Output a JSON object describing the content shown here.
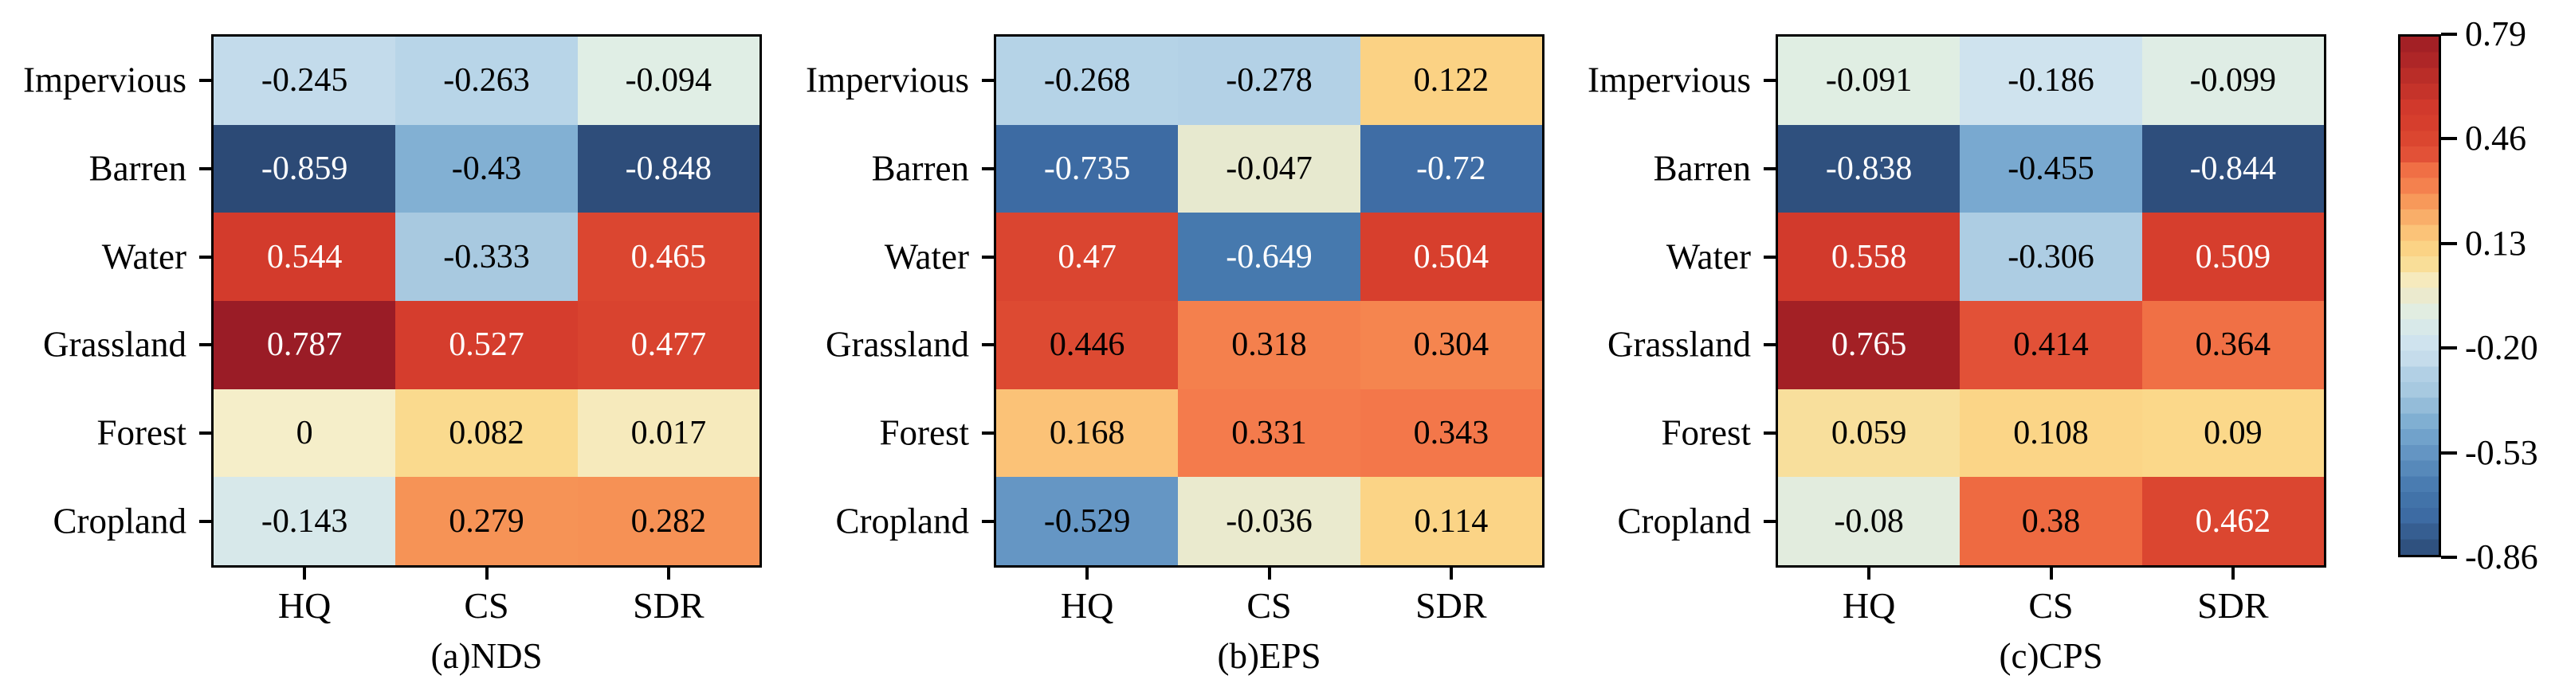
{
  "figure": {
    "kind": "correlation-heatmaps",
    "background": "#ffffff"
  },
  "chart_data": [
    {
      "type": "heatmap",
      "title": "(a)NDS",
      "rows": [
        "Impervious",
        "Barren",
        "Water",
        "Grassland",
        "Forest",
        "Cropland"
      ],
      "cols": [
        "HQ",
        "CS",
        "SDR"
      ],
      "values": [
        [
          -0.245,
          -0.263,
          -0.094
        ],
        [
          -0.859,
          -0.43,
          -0.848
        ],
        [
          0.544,
          -0.333,
          0.465
        ],
        [
          0.787,
          0.527,
          0.477
        ],
        [
          0,
          0.082,
          0.017
        ],
        [
          -0.143,
          0.279,
          0.282
        ]
      ]
    },
    {
      "type": "heatmap",
      "title": "(b)EPS",
      "rows": [
        "Impervious",
        "Barren",
        "Water",
        "Grassland",
        "Forest",
        "Cropland"
      ],
      "cols": [
        "HQ",
        "CS",
        "SDR"
      ],
      "values": [
        [
          -0.268,
          -0.278,
          0.122
        ],
        [
          -0.735,
          -0.047,
          -0.72
        ],
        [
          0.47,
          -0.649,
          0.504
        ],
        [
          0.446,
          0.318,
          0.304
        ],
        [
          0.168,
          0.331,
          0.343
        ],
        [
          -0.529,
          -0.036,
          0.114
        ]
      ]
    },
    {
      "type": "heatmap",
      "title": "(c)CPS",
      "rows": [
        "Impervious",
        "Barren",
        "Water",
        "Grassland",
        "Forest",
        "Cropland"
      ],
      "cols": [
        "HQ",
        "CS",
        "SDR"
      ],
      "values": [
        [
          -0.091,
          -0.186,
          -0.099
        ],
        [
          -0.838,
          -0.455,
          -0.844
        ],
        [
          0.558,
          -0.306,
          0.509
        ],
        [
          0.765,
          0.414,
          0.364
        ],
        [
          0.059,
          0.108,
          0.09
        ],
        [
          -0.08,
          0.38,
          0.462
        ]
      ]
    }
  ],
  "colorbar": {
    "vmin": -0.86,
    "vmax": 0.79,
    "tick_labels": [
      "0.79",
      "0.46",
      "0.13",
      "-0.20",
      "-0.53",
      "-0.86"
    ],
    "bands": 33
  },
  "colors": {
    "text_black": "#000000",
    "text_white": "#ffffff",
    "border": "#000000",
    "colormap_stops": [
      [
        0.0,
        "#2c4a76"
      ],
      [
        0.076,
        "#3d6ba3"
      ],
      [
        0.128,
        "#4679ae"
      ],
      [
        0.2,
        "#6596c4"
      ],
      [
        0.245,
        "#79a9d0"
      ],
      [
        0.261,
        "#82b0d3"
      ],
      [
        0.319,
        "#a8c9e0"
      ],
      [
        0.359,
        "#b5d3e7"
      ],
      [
        0.373,
        "#c3dbeb"
      ],
      [
        0.409,
        "#cfe3ee"
      ],
      [
        0.464,
        "#e0eee5"
      ],
      [
        0.493,
        "#e7e9cf"
      ],
      [
        0.521,
        "#f5eec9"
      ],
      [
        0.557,
        "#f8df9c"
      ],
      [
        0.575,
        "#fbd88a"
      ],
      [
        0.596,
        "#fbd284"
      ],
      [
        0.623,
        "#fbc277"
      ],
      [
        0.69,
        "#f69356"
      ],
      [
        0.706,
        "#f5854f"
      ],
      [
        0.729,
        "#f3774a"
      ],
      [
        0.752,
        "#ee6a41"
      ],
      [
        0.772,
        "#e25137"
      ],
      [
        0.796,
        "#dc4831"
      ],
      [
        0.824,
        "#d73f2d"
      ],
      [
        0.86,
        "#d23a2c"
      ],
      [
        0.985,
        "#a32025"
      ],
      [
        1.0,
        "#991c26"
      ]
    ]
  }
}
